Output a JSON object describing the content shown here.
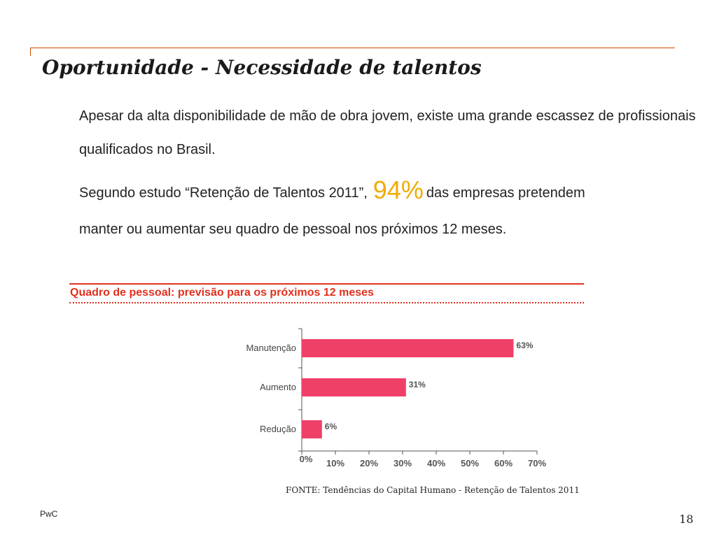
{
  "slide": {
    "title": "Oportunidade - Necessidade de talentos",
    "paragraph1": "Apesar da alta disponibilidade de mão de obra jovem, existe uma grande escassez de profissionais qualificados no Brasil.",
    "paragraph2_before": "Segundo estudo “Retenção de Talentos 2011”,",
    "paragraph2_highlight": "94%",
    "paragraph2_after": "das empresas pretendem",
    "paragraph3": "manter ou aumentar seu quadro de pessoal nos próximos 12 meses.",
    "source": "FONTE: Tendências do Capital Humano - Retenção de Talentos 2011",
    "footer_left": "PwC",
    "page_number": "18"
  },
  "colors": {
    "accent_orange": "#d04a02",
    "highlight_yellow": "#f0ab00",
    "chart_red": "#e0301e",
    "bar_pink": "#ef4068"
  },
  "chart_data": {
    "type": "bar",
    "orientation": "horizontal",
    "title": "Quadro de pessoal: previsão para os próximos 12 meses",
    "categories": [
      "Manutenção",
      "Aumento",
      "Redução"
    ],
    "values": [
      63,
      31,
      6
    ],
    "data_labels": [
      "63%",
      "31%",
      "6%"
    ],
    "xlim": [
      0,
      70
    ],
    "x_ticks": [
      "0%",
      "10%",
      "20%",
      "30%",
      "40%",
      "50%",
      "60%",
      "70%"
    ],
    "grid": false,
    "legend": "none"
  }
}
